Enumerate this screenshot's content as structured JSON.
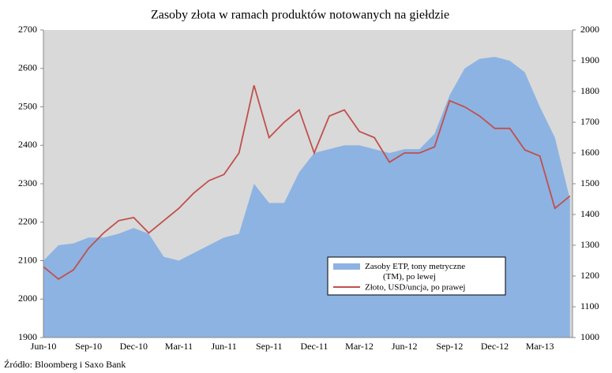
{
  "chart_data": {
    "type": "area-line",
    "title": "Zasoby złota w ramach produktów notowanych na giełdzie",
    "source": "Źródło: Bloomberg i Saxo Bank",
    "categories": [
      "Jun-10",
      null,
      null,
      "Sep-10",
      null,
      null,
      "Dec-10",
      null,
      null,
      "Mar-11",
      null,
      null,
      "Jun-11",
      null,
      null,
      "Sep-11",
      null,
      null,
      "Dec-11",
      null,
      null,
      "Mar-12",
      null,
      null,
      "Jun-12",
      null,
      null,
      "Sep-12",
      null,
      null,
      "Dec-12",
      null,
      null,
      "Mar-13",
      null,
      null
    ],
    "series": [
      {
        "name": "Zasoby ETP, tony metryczne (TM), po lewej",
        "kind": "area",
        "axis": "y",
        "color": "#8db3e2",
        "values": [
          2100,
          2140,
          2145,
          2160,
          2160,
          2170,
          2185,
          2170,
          2110,
          2100,
          2120,
          2140,
          2160,
          2170,
          2300,
          2250,
          2250,
          2330,
          2380,
          2390,
          2400,
          2400,
          2390,
          2380,
          2390,
          2390,
          2430,
          2530,
          2600,
          2625,
          2630,
          2620,
          2590,
          2500,
          2420,
          2260
        ]
      },
      {
        "name": "Złoto, USD/uncja, po prawej",
        "kind": "line",
        "axis": "y2",
        "color": "#c0504d",
        "values": [
          1230,
          1190,
          1220,
          1290,
          1340,
          1380,
          1390,
          1340,
          1380,
          1420,
          1470,
          1510,
          1530,
          1600,
          1820,
          1650,
          1700,
          1740,
          1600,
          1720,
          1740,
          1670,
          1650,
          1570,
          1600,
          1600,
          1620,
          1770,
          1750,
          1720,
          1680,
          1680,
          1610,
          1590,
          1420,
          1460
        ]
      }
    ],
    "ylim": [
      1900,
      2700
    ],
    "yticks": [
      1900,
      2000,
      2100,
      2200,
      2300,
      2400,
      2500,
      2600,
      2700
    ],
    "y2lim": [
      1000,
      2000
    ],
    "y2ticks": [
      1000,
      1100,
      1200,
      1300,
      1400,
      1500,
      1600,
      1700,
      1800,
      1900,
      2000
    ],
    "background": "#d9d9d9"
  }
}
